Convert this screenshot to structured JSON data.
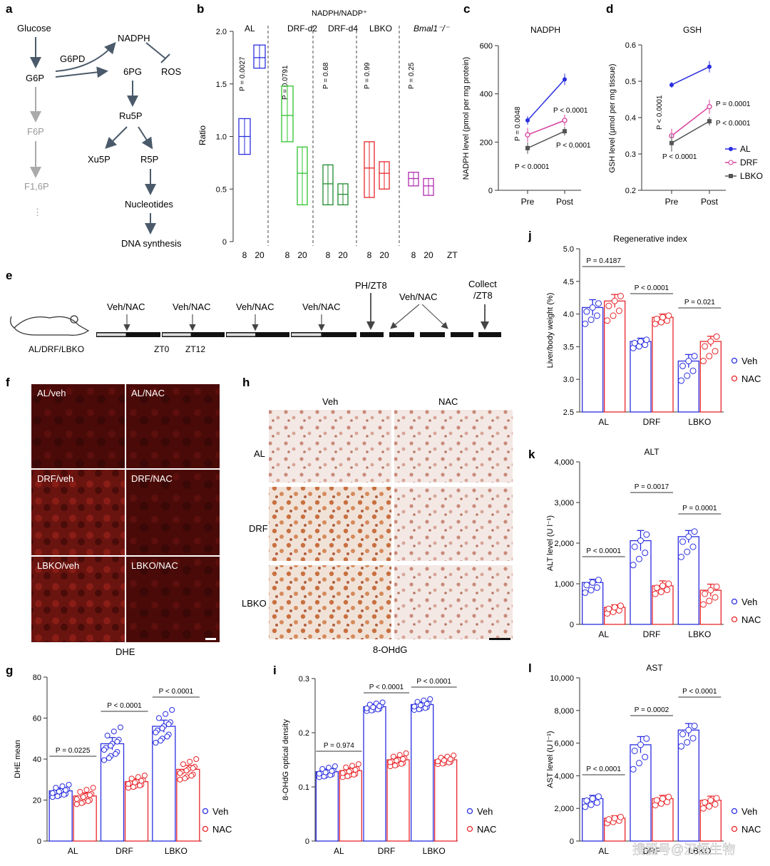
{
  "colors": {
    "blue": "#2a2ee0",
    "red": "#e8262b",
    "green": "#2fc42f",
    "dkgreen": "#1e8a2e",
    "magenta": "#b02db0",
    "grey": "#555555",
    "pink": "#d6409c"
  },
  "panels": {
    "a": "a",
    "b": "b",
    "c": "c",
    "d": "d",
    "e": "e",
    "f": "f",
    "g": "g",
    "h": "h",
    "i": "i",
    "j": "j",
    "k": "k",
    "l": "l"
  },
  "pathway": {
    "glucose": "Glucose",
    "g6pd": "G6PD",
    "nadph": "NADPH",
    "g6p": "G6P",
    "pg6": "6PG",
    "ros": "ROS",
    "ru5p": "Ru5P",
    "f6p": "F6P",
    "xu5p": "Xu5P",
    "r5p": "R5P",
    "f16p": "F1,6P",
    "dots": "⋮",
    "nucleotides": "Nucleotides",
    "dna": "DNA synthesis"
  },
  "panel_b": {
    "title": "NADPH/NADP⁺",
    "ylabel": "Ratio",
    "zt": "ZT",
    "yticks": [
      "0",
      "0.5",
      "1.0",
      "1.5",
      "2.0"
    ],
    "groups": [
      {
        "name": "AL",
        "p": "P = 0.0027"
      },
      {
        "name": "DRF-d2",
        "p": "P = 0.0791"
      },
      {
        "name": "DRF-d4",
        "p": "P = 0.68"
      },
      {
        "name": "LBKO",
        "p": "P = 0.99"
      },
      {
        "name": "Bmal1⁻/⁻",
        "p": "P = 0.25"
      }
    ],
    "xticks": [
      "8",
      "20"
    ]
  },
  "panel_c": {
    "title": "NADPH",
    "ylabel": "NADPH level (pmol per mg protein)",
    "yticks": [
      "0",
      "200",
      "400",
      "600"
    ],
    "xticks": [
      "Pre",
      "Post"
    ],
    "p1": "P = 0.0048",
    "p2": "P < 0.0001",
    "p3": "P < 0.0001",
    "p4": "P < 0.0001"
  },
  "panel_d": {
    "title": "GSH",
    "ylabel": "GSH level (μmol per mg tissue)",
    "yticks": [
      "0.2",
      "0.3",
      "0.4",
      "0.5",
      "0.6"
    ],
    "xticks": [
      "Pre",
      "Post"
    ],
    "p1": "P < 0.0001",
    "p2": "P < 0.0001",
    "p3": "P = 0.0001",
    "p4": "P < 0.0001",
    "legend": [
      "AL",
      "DRF",
      "LBKO"
    ]
  },
  "panel_e": {
    "mouse": "AL/DRF/LBKO",
    "treat": [
      "Veh/NAC",
      "Veh/NAC",
      "Veh/NAC",
      "Veh/NAC"
    ],
    "ph": "PH/ZT8",
    "treat2": "Veh/NAC",
    "collect": "Collect\n/ZT8",
    "zt0": "ZT0",
    "zt12": "ZT12"
  },
  "panel_f": {
    "labels": [
      "AL/veh",
      "AL/NAC",
      "DRF/veh",
      "DRF/NAC",
      "LBKO/veh",
      "LBKO/NAC"
    ],
    "caption": "DHE"
  },
  "panel_h": {
    "cols": [
      "Veh",
      "NAC"
    ],
    "rows": [
      "AL",
      "DRF",
      "LBKO"
    ],
    "caption": "8-OHdG"
  },
  "panel_g": {
    "ylabel": "DHE mean",
    "yticks": [
      "0",
      "20",
      "40",
      "60",
      "80"
    ],
    "xticks": [
      "AL",
      "DRF",
      "LBKO"
    ],
    "ps": [
      "P = 0.0225",
      "P < 0.0001",
      "P < 0.0001"
    ],
    "legend": [
      "Veh",
      "NAC"
    ]
  },
  "panel_i": {
    "ylabel": "8-OHdG optical density",
    "yticks": [
      "0",
      "0.1",
      "0.2",
      "0.3"
    ],
    "xticks": [
      "AL",
      "DRF",
      "LBKO"
    ],
    "ps": [
      "P = 0.974",
      "P < 0.0001",
      "P < 0.0001"
    ],
    "legend": [
      "Veh",
      "NAC"
    ]
  },
  "panel_j": {
    "title": "Regenerative index",
    "ylabel": "Liver/body weight (%)",
    "yticks": [
      "2.5",
      "3.0",
      "3.5",
      "4.0",
      "4.5",
      "5.0"
    ],
    "xticks": [
      "AL",
      "DRF",
      "LBKO"
    ],
    "ps": [
      "P = 0.4187",
      "P < 0.0001",
      "P = 0.021"
    ],
    "legend": [
      "Veh",
      "NAC"
    ]
  },
  "panel_k": {
    "title": "ALT",
    "ylabel": "ALT level (U l⁻¹)",
    "yticks": [
      "0",
      "1,000",
      "2,000",
      "3,000",
      "4,000"
    ],
    "xticks": [
      "AL",
      "DRF",
      "LBKO"
    ],
    "ps": [
      "P < 0.0001",
      "P = 0.0017",
      "P = 0.0001"
    ],
    "legend": [
      "Veh",
      "NAC"
    ]
  },
  "panel_l": {
    "title": "AST",
    "ylabel": "AST level (U l⁻¹)",
    "yticks": [
      "0",
      "2,000",
      "4,000",
      "6,000",
      "8,000",
      "10,000"
    ],
    "xticks": [
      "AL",
      "DRF",
      "LBKO"
    ],
    "ps": [
      "P < 0.0001",
      "P = 0.0002",
      "P < 0.0001"
    ],
    "legend": [
      "Veh",
      "NAC"
    ]
  },
  "watermark": "搜狐号@汉恒生物",
  "chart_data": [
    {
      "type": "bar",
      "id": "b",
      "categories": [
        "AL",
        "DRF-d2",
        "DRF-d4",
        "LBKO",
        "Bmal1-/-"
      ],
      "ylim": [
        0,
        2
      ],
      "series": [
        {
          "name": "8",
          "values": [
            1.0,
            1.2,
            0.55,
            0.7,
            0.6
          ]
        },
        {
          "name": "20",
          "values": [
            1.75,
            0.65,
            0.45,
            0.65,
            0.53
          ]
        }
      ]
    },
    {
      "type": "line",
      "id": "c",
      "x": [
        "Pre",
        "Post"
      ],
      "ylim": [
        0,
        600
      ],
      "series": [
        {
          "name": "AL",
          "values": [
            290,
            460
          ]
        },
        {
          "name": "DRF",
          "values": [
            230,
            290
          ]
        },
        {
          "name": "LBKO",
          "values": [
            175,
            245
          ]
        }
      ]
    },
    {
      "type": "line",
      "id": "d",
      "x": [
        "Pre",
        "Post"
      ],
      "ylim": [
        0.2,
        0.6
      ],
      "series": [
        {
          "name": "AL",
          "values": [
            0.49,
            0.54
          ]
        },
        {
          "name": "DRF",
          "values": [
            0.35,
            0.43
          ]
        },
        {
          "name": "LBKO",
          "values": [
            0.33,
            0.39
          ]
        }
      ]
    },
    {
      "type": "bar",
      "id": "g",
      "categories": [
        "AL",
        "DRF",
        "LBKO"
      ],
      "ylim": [
        0,
        80
      ],
      "series": [
        {
          "name": "Veh",
          "values": [
            24.5,
            47.5,
            56
          ]
        },
        {
          "name": "NAC",
          "values": [
            22,
            29,
            35
          ]
        }
      ]
    },
    {
      "type": "bar",
      "id": "i",
      "categories": [
        "AL",
        "DRF",
        "LBKO"
      ],
      "ylim": [
        0,
        0.3
      ],
      "series": [
        {
          "name": "Veh",
          "values": [
            0.128,
            0.248,
            0.252
          ]
        },
        {
          "name": "NAC",
          "values": [
            0.13,
            0.15,
            0.15
          ]
        }
      ]
    },
    {
      "type": "bar",
      "id": "j",
      "categories": [
        "AL",
        "DRF",
        "LBKO"
      ],
      "ylim": [
        2.5,
        5.0
      ],
      "series": [
        {
          "name": "Veh",
          "values": [
            4.1,
            3.58,
            3.28
          ]
        },
        {
          "name": "NAC",
          "values": [
            4.2,
            3.95,
            3.58
          ]
        }
      ]
    },
    {
      "type": "bar",
      "id": "k",
      "categories": [
        "AL",
        "DRF",
        "LBKO"
      ],
      "ylim": [
        0,
        4000
      ],
      "series": [
        {
          "name": "Veh",
          "values": [
            1030,
            2060,
            2160
          ]
        },
        {
          "name": "NAC",
          "values": [
            420,
            950,
            840
          ]
        }
      ]
    },
    {
      "type": "bar",
      "id": "l",
      "categories": [
        "AL",
        "DRF",
        "LBKO"
      ],
      "ylim": [
        0,
        10000
      ],
      "series": [
        {
          "name": "Veh",
          "values": [
            2600,
            5900,
            6800
          ]
        },
        {
          "name": "NAC",
          "values": [
            1400,
            2600,
            2500
          ]
        }
      ]
    }
  ]
}
